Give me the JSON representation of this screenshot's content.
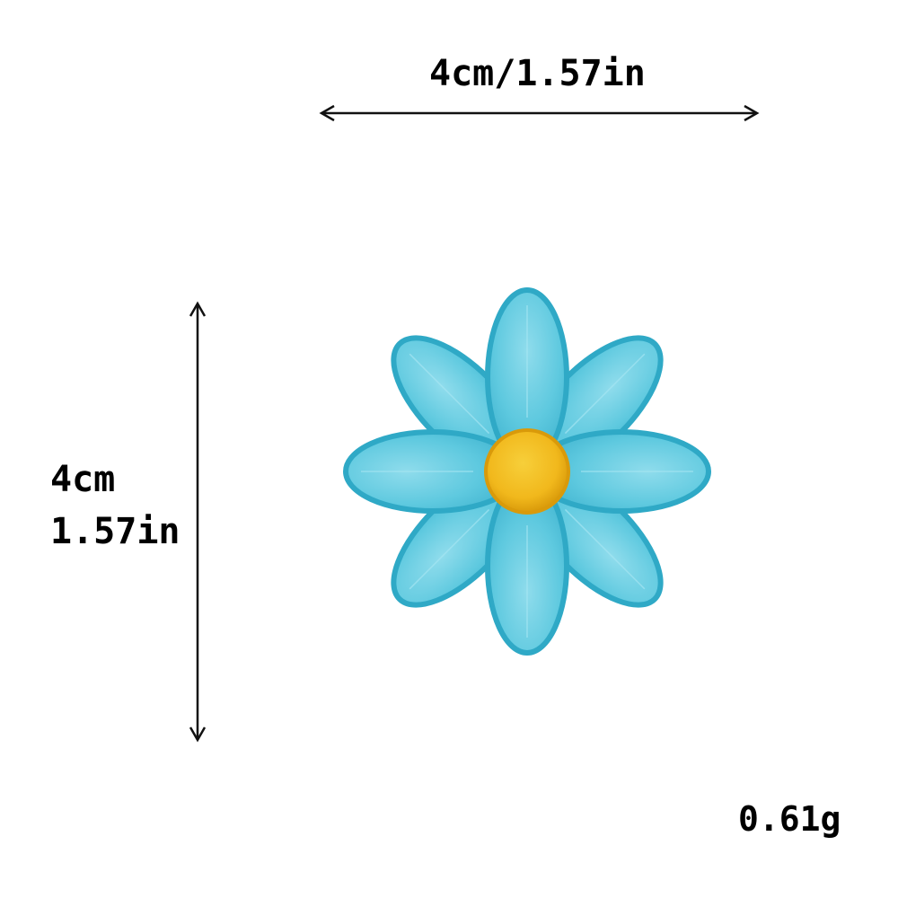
{
  "dimensions": {
    "width_label": "4cm/1.57in",
    "height_label_cm": "4cm",
    "height_label_in": "1.57in"
  },
  "weight_label": "0.61g",
  "colors": {
    "petal_fill": "#5ec9df",
    "petal_edge": "#2fa9c6",
    "petal_highlight": "#8fdcec",
    "center_fill": "#f1b81c",
    "center_edge": "#d99a0a",
    "arrow": "#111111"
  },
  "product": {
    "shape": "flower-patch",
    "petal_count": 8
  }
}
